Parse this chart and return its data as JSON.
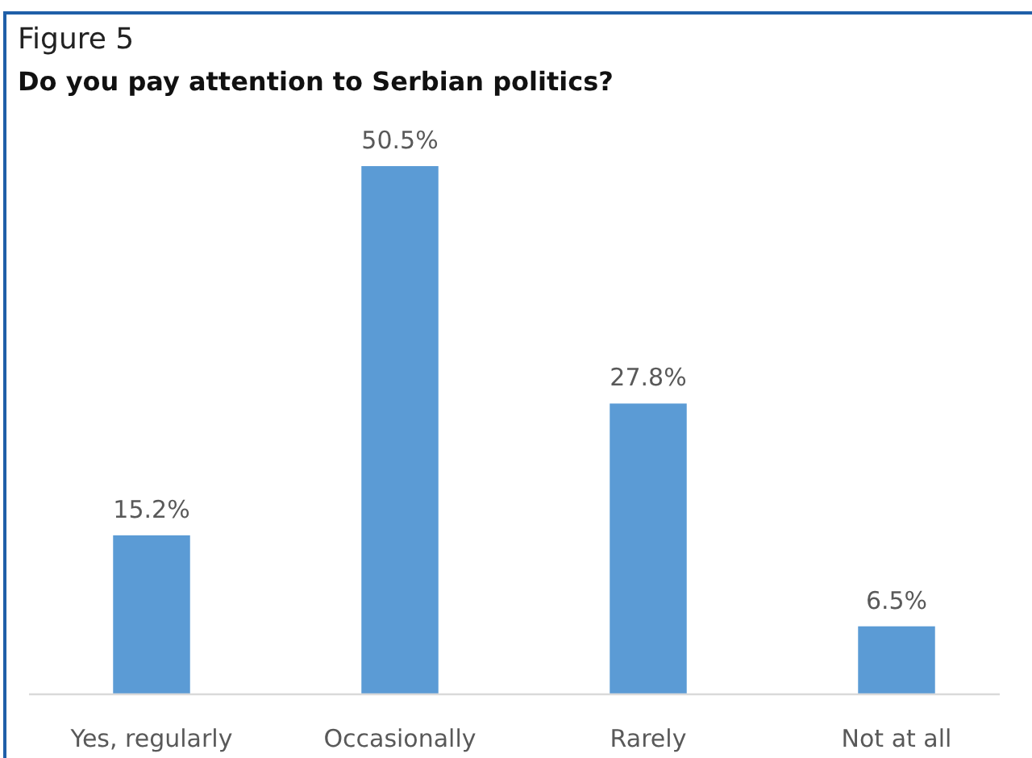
{
  "chart_data": {
    "type": "bar",
    "title": "Figure 5",
    "subtitle": "Do you pay attention to Serbian politics?",
    "categories": [
      "Yes, regularly",
      "Occasionally",
      "Rarely",
      "Not at all"
    ],
    "values": [
      15.2,
      50.5,
      27.8,
      6.5
    ],
    "color": "#5b9bd5",
    "value_labels": [
      "15.2%",
      "50.5%",
      "27.8%",
      "6.5%"
    ]
  }
}
